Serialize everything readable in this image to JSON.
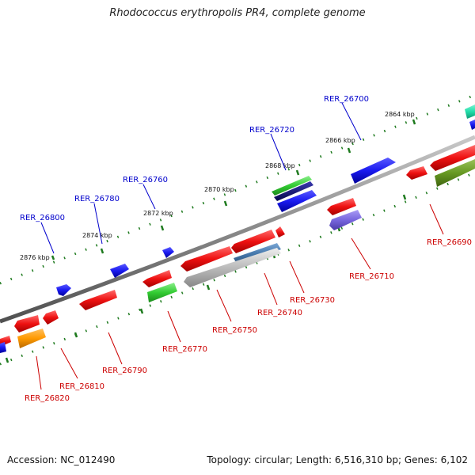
{
  "map": {
    "title": "Rhodococcus erythropolis PR4, complete genome",
    "accession": "Accession: NC_012490",
    "summary": "Topology: circular; Length: 6,516,310 bp; Genes: 6,102"
  },
  "scale_ticks": [
    {
      "label": "2876 kbp"
    },
    {
      "label": "2874 kbp"
    },
    {
      "label": "2872 kbp"
    },
    {
      "label": "2870 kbp"
    },
    {
      "label": "2868 kbp"
    },
    {
      "label": "2866 kbp"
    },
    {
      "label": "2864 kbp"
    }
  ],
  "gene_labels": [
    {
      "label": "RER_26800",
      "color": "#0000cc"
    },
    {
      "label": "RER_26780",
      "color": "#0000cc"
    },
    {
      "label": "RER_26760",
      "color": "#0000cc"
    },
    {
      "label": "RER_26720",
      "color": "#0000cc"
    },
    {
      "label": "RER_26700",
      "color": "#0000cc"
    },
    {
      "label": "RER_26690",
      "color": "#cc0000"
    },
    {
      "label": "RER_26710",
      "color": "#cc0000"
    },
    {
      "label": "RER_26730",
      "color": "#cc0000"
    },
    {
      "label": "RER_26740",
      "color": "#cc0000"
    },
    {
      "label": "RER_26750",
      "color": "#cc0000"
    },
    {
      "label": "RER_26770",
      "color": "#cc0000"
    },
    {
      "label": "RER_26790",
      "color": "#cc0000"
    },
    {
      "label": "RER_26810",
      "color": "#cc0000"
    },
    {
      "label": "RER_26820",
      "color": "#cc0000"
    }
  ],
  "colors": {
    "backbone": "#8a8a8a",
    "tick_dots": "#1e7a1e",
    "red_gene": "#ee1111",
    "blue_gene": "#1a1af0",
    "green_gene": "#33cc33",
    "navy_gene": "#0a0a7a",
    "orange_gene": "#ff9900",
    "purple_gene": "#7766dd",
    "gray_gene": "#bbbbbb",
    "steel_gene": "#4477aa",
    "olive_gene": "#669922",
    "teal_gene": "#22ddaa"
  }
}
